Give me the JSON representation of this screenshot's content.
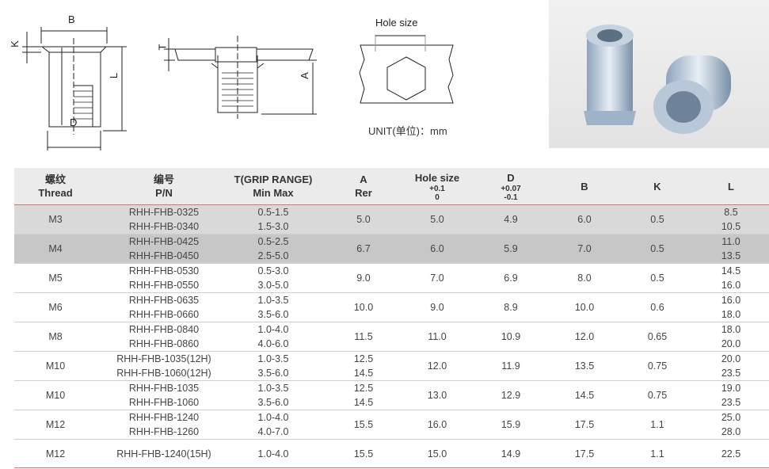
{
  "drawings": {
    "labels": {
      "B": "B",
      "K": "K",
      "L": "L",
      "D": "D",
      "T": "T",
      "A": "A",
      "hole_size": "Hole size"
    },
    "unit": "UNIT(单位)：mm"
  },
  "photo": {
    "icon": "rivet-nut-photo"
  },
  "table": {
    "headers": [
      {
        "l1": "螺纹",
        "l2": "Thread"
      },
      {
        "l1": "编号",
        "l2": "P/N"
      },
      {
        "l1": "T(GRIP RANGE)",
        "l2": "Min Max"
      },
      {
        "l1": "A",
        "l2": "Rer"
      },
      {
        "l1": "Hole size",
        "s1": "+0.1",
        "s2": "0"
      },
      {
        "l1": "D",
        "s1": "+0.07",
        "s2": "-0.1"
      },
      {
        "l1": "B"
      },
      {
        "l1": "K"
      },
      {
        "l1": "L"
      }
    ],
    "rows": [
      {
        "thread": "M3",
        "pn": [
          "RHH-FHB-0325",
          "RHH-FHB-0340"
        ],
        "t": [
          "0.5-1.5",
          "1.5-3.0"
        ],
        "a": [
          "5.0"
        ],
        "hole": "5.0",
        "d": "4.9",
        "b": "6.0",
        "k": "0.5",
        "l": [
          "8.5",
          "10.5"
        ]
      },
      {
        "thread": "M4",
        "pn": [
          "RHH-FHB-0425",
          "RHH-FHB-0450"
        ],
        "t": [
          "0.5-2.5",
          "2.5-5.0"
        ],
        "a": [
          "6.7"
        ],
        "hole": "6.0",
        "d": "5.9",
        "b": "7.0",
        "k": "0.5",
        "l": [
          "11.0",
          "13.5"
        ]
      },
      {
        "thread": "M5",
        "pn": [
          "RHH-FHB-0530",
          "RHH-FHB-0550"
        ],
        "t": [
          "0.5-3.0",
          "3.0-5.0"
        ],
        "a": [
          "9.0"
        ],
        "hole": "7.0",
        "d": "6.9",
        "b": "8.0",
        "k": "0.5",
        "l": [
          "14.5",
          "16.0"
        ]
      },
      {
        "thread": "M6",
        "pn": [
          "RHH-FHB-0635",
          "RHH-FHB-0660"
        ],
        "t": [
          "1.0-3.5",
          "3.5-6.0"
        ],
        "a": [
          "10.0"
        ],
        "hole": "9.0",
        "d": "8.9",
        "b": "10.0",
        "k": "0.6",
        "l": [
          "16.0",
          "18.0"
        ]
      },
      {
        "thread": "M8",
        "pn": [
          "RHH-FHB-0840",
          "RHH-FHB-0860"
        ],
        "t": [
          "1.0-4.0",
          "4.0-6.0"
        ],
        "a": [
          "11.5"
        ],
        "hole": "11.0",
        "d": "10.9",
        "b": "12.0",
        "k": "0.65",
        "l": [
          "18.0",
          "20.0"
        ]
      },
      {
        "thread": "M10",
        "pn": [
          "RHH-FHB-1035(12H)",
          "RHH-FHB-1060(12H)"
        ],
        "t": [
          "1.0-3.5",
          "3.5-6.0"
        ],
        "a": [
          "12.5",
          "14.5"
        ],
        "hole": "12.0",
        "d": "11.9",
        "b": "13.5",
        "k": "0.75",
        "l": [
          "20.0",
          "23.5"
        ]
      },
      {
        "thread": "M10",
        "pn": [
          "RHH-FHB-1035",
          "RHH-FHB-1060"
        ],
        "t": [
          "1.0-3.5",
          "3.5-6.0"
        ],
        "a": [
          "12.5",
          "14.5"
        ],
        "hole": "13.0",
        "d": "12.9",
        "b": "14.5",
        "k": "0.75",
        "l": [
          "19.0",
          "23.5"
        ]
      },
      {
        "thread": "M12",
        "pn": [
          "RHH-FHB-1240",
          "RHH-FHB-1260"
        ],
        "t": [
          "1.0-4.0",
          "4.0-7.0"
        ],
        "a": [
          "15.5"
        ],
        "hole": "16.0",
        "d": "15.9",
        "b": "17.5",
        "k": "1.1",
        "l": [
          "25.0",
          "28.0"
        ]
      },
      {
        "thread": "M12",
        "pn": [
          "RHH-FHB-1240(15H)"
        ],
        "t": [
          "1.0-4.0"
        ],
        "a": [
          "15.5"
        ],
        "hole": "15.0",
        "d": "14.9",
        "b": "17.5",
        "k": "1.1",
        "l": [
          "22.5"
        ]
      }
    ]
  }
}
